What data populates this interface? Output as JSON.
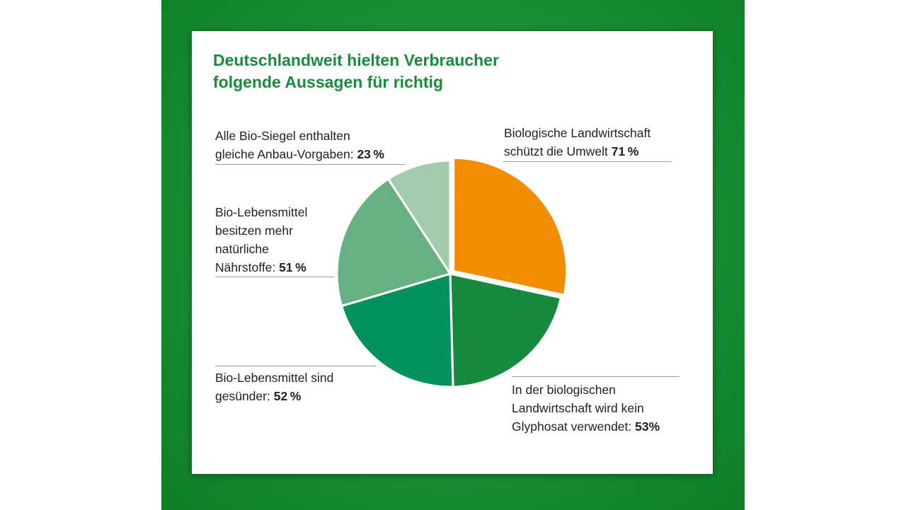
{
  "chart_data": {
    "type": "pie",
    "title_lines": [
      "Deutschlandweit hielten Verbraucher",
      "folgende Aussagen für richtig"
    ],
    "slices": [
      {
        "lines": [
          "Biologische Landwirtschaft",
          "schützt die Umwelt"
        ],
        "value_label": "71 %",
        "value": 71,
        "color": "#f28c00",
        "exploded": true
      },
      {
        "lines": [
          "In der biologischen",
          "Landwirtschaft wird kein",
          "Glyphosat verwendet:"
        ],
        "value_label": "53%",
        "value": 53,
        "color": "#178a3e",
        "exploded": false
      },
      {
        "lines": [
          "Bio-Lebensmittel sind",
          "gesünder:"
        ],
        "value_label": "52 %",
        "value": 52,
        "color": "#00935c",
        "exploded": false
      },
      {
        "lines": [
          "Bio-Lebensmittel",
          "besitzen mehr",
          "natürliche",
          "Nährstoffe:"
        ],
        "value_label": "51 %",
        "value": 51,
        "color": "#66b083",
        "exploded": false
      },
      {
        "lines": [
          "Alle Bio-Siegel enthalten",
          "gleiche Anbau-Vorgaben:"
        ],
        "value_label": "23 %",
        "value": 23,
        "color": "#a2cbac",
        "exploded": false
      }
    ]
  }
}
